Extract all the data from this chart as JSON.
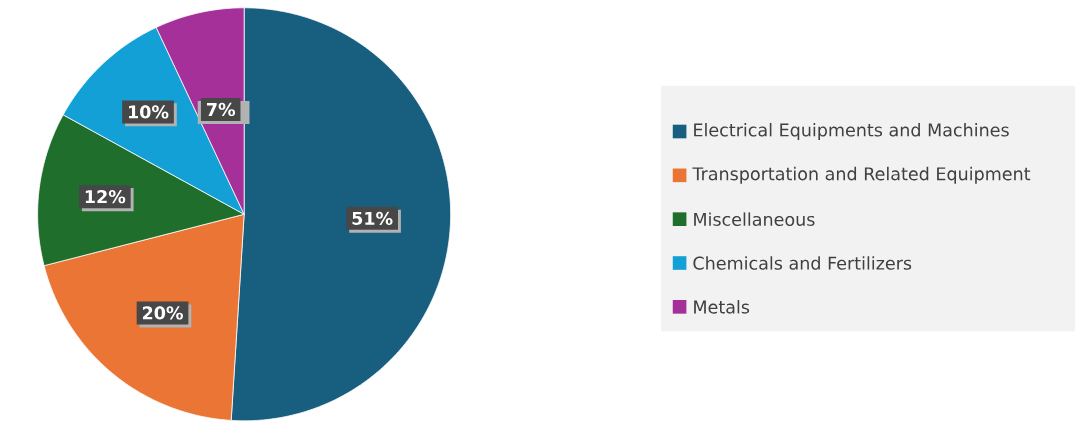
{
  "chart_data": {
    "type": "pie",
    "categories": [
      "Electrical Equipments and Machines",
      "Transportation and Related Equipment",
      "Miscellaneous",
      "Chemicals and Fertilizers",
      "Metals"
    ],
    "values": [
      51,
      20,
      12,
      10,
      7
    ],
    "colors": [
      "#175e7f",
      "#ea7534",
      "#1f6e2b",
      "#13a0d7",
      "#a5309a"
    ],
    "value_labels": [
      "51%",
      "20%",
      "12%",
      "10%",
      "7%"
    ],
    "legend": "right"
  }
}
